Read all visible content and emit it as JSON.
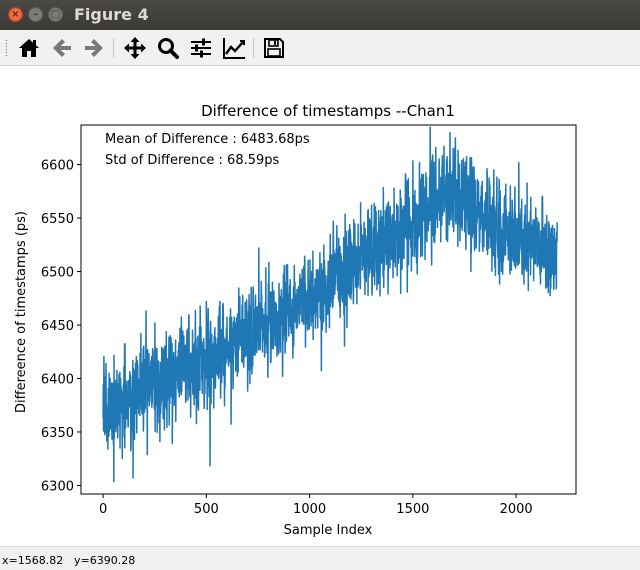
{
  "window": {
    "title": "Figure 4",
    "controls": [
      "close-icon",
      "minimize-icon",
      "maximize-icon"
    ]
  },
  "toolbar": {
    "buttons": [
      {
        "name": "home-button",
        "icon": "home-icon"
      },
      {
        "name": "back-button",
        "icon": "arrow-left-icon"
      },
      {
        "name": "forward-button",
        "icon": "arrow-right-icon"
      },
      {
        "name": "pan-button",
        "icon": "move-icon"
      },
      {
        "name": "zoom-button",
        "icon": "magnifier-icon"
      },
      {
        "name": "configure-subplots-button",
        "icon": "sliders-icon"
      },
      {
        "name": "edit-axis-button",
        "icon": "line-chart-icon"
      },
      {
        "name": "save-button",
        "icon": "floppy-disk-icon"
      }
    ]
  },
  "status": {
    "x_readout": "x=1568.82",
    "y_readout": "y=6390.28"
  },
  "colors": {
    "series": "#1f77b4",
    "titlebar": "#3c3b37",
    "toolbar": "#f2f1f0"
  },
  "chart_data": {
    "type": "line",
    "title": "Difference of timestamps --Chan1",
    "xlabel": "Sample Index",
    "ylabel": "Differeence of timestamps (ps)",
    "xlim": [
      -107,
      2290
    ],
    "ylim": [
      6292,
      6637
    ],
    "xticks": [
      0,
      500,
      1000,
      1500,
      2000
    ],
    "yticks": [
      6300,
      6350,
      6400,
      6450,
      6500,
      6550,
      6600
    ],
    "grid": false,
    "annotations": [
      "Mean of Difference : 6483.68ps",
      "Std of Difference : 68.59ps"
    ],
    "series": [
      {
        "values_summary": "noisy signal of about 2200 samples, amplitude roughly ±40 ps around the trend",
        "x_count": 2200,
        "trend": [
          {
            "x": 0,
            "y": 6370
          },
          {
            "x": 250,
            "y": 6395
          },
          {
            "x": 500,
            "y": 6420
          },
          {
            "x": 750,
            "y": 6445
          },
          {
            "x": 1000,
            "y": 6475
          },
          {
            "x": 1250,
            "y": 6515
          },
          {
            "x": 1500,
            "y": 6545
          },
          {
            "x": 1650,
            "y": 6575
          },
          {
            "x": 1800,
            "y": 6555
          },
          {
            "x": 2000,
            "y": 6530
          },
          {
            "x": 2199,
            "y": 6515
          }
        ],
        "noise_std": 22,
        "extremes": [
          {
            "x": 145,
            "y": 6307
          },
          {
            "x": 1680,
            "y": 6630
          }
        ]
      }
    ]
  }
}
